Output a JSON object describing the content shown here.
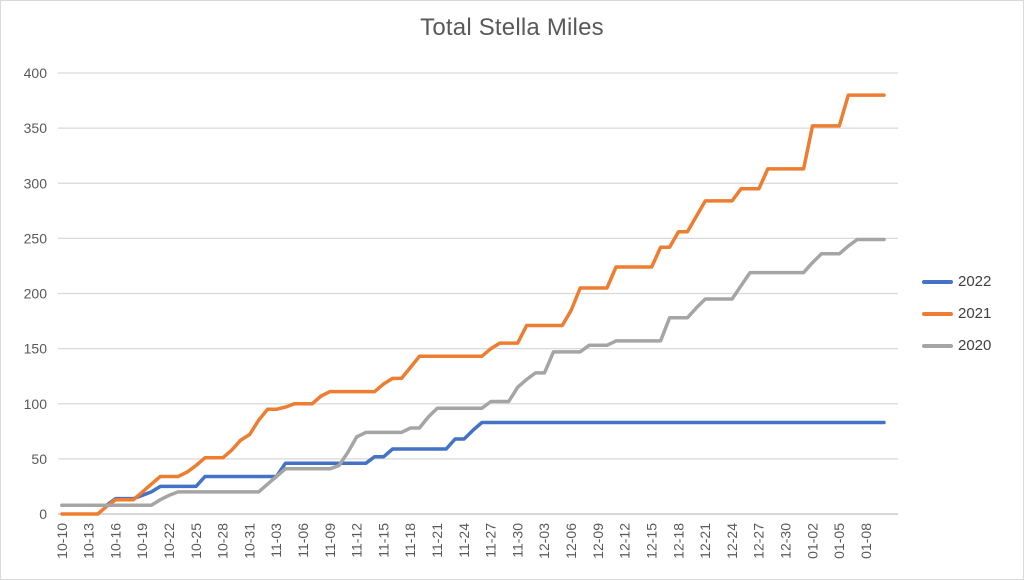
{
  "title": "Total Stella Miles",
  "colors": {
    "title_text": "#595959",
    "axis_text": "#595959",
    "legend_text": "#404040",
    "gridline": "#d9d9d9",
    "axis_line": "#bfbfbf",
    "canvas_border": "#d9d9d9",
    "series_2022": "#4472c4",
    "series_2021": "#ed7d31",
    "series_2020": "#a5a5a5"
  },
  "chart_data": {
    "type": "line",
    "title": "Total Stella Miles",
    "xlabel": "",
    "ylabel": "",
    "ylim": [
      0,
      400
    ],
    "y_tick_step": 50,
    "y_tick_labels": [
      "0",
      "50",
      "100",
      "150",
      "200",
      "250",
      "300",
      "350",
      "400"
    ],
    "grid": true,
    "legend_position": "right",
    "x_tick_every_points": 3,
    "x_tick_labels": [
      "10-10",
      "10-13",
      "10-16",
      "10-19",
      "10-22",
      "10-25",
      "10-28",
      "10-31",
      "11-03",
      "11-06",
      "11-09",
      "11-12",
      "11-15",
      "11-18",
      "11-21",
      "11-24",
      "11-27",
      "11-30",
      "12-03",
      "12-06",
      "12-09",
      "12-12",
      "12-15",
      "12-18",
      "12-21",
      "12-24",
      "12-27",
      "12-30",
      "01-02",
      "01-05",
      "01-08"
    ],
    "series": [
      {
        "name": "2022",
        "color": "#4472c4",
        "values": [
          8,
          8,
          8,
          8,
          8,
          8,
          14,
          14,
          14,
          17,
          20,
          25,
          25,
          25,
          25,
          25,
          34,
          34,
          34,
          34,
          34,
          34,
          34,
          34,
          34,
          46,
          46,
          46,
          46,
          46,
          46,
          46,
          46,
          46,
          46,
          52,
          52,
          59,
          59,
          59,
          59,
          59,
          59,
          59,
          68,
          68,
          76,
          83,
          83,
          83,
          83,
          83,
          83,
          83,
          83,
          83,
          83,
          83,
          83,
          83,
          83,
          83,
          83,
          83,
          83,
          83,
          83,
          83,
          83,
          83,
          83,
          83,
          83,
          83,
          83,
          83,
          83,
          83,
          83,
          83,
          83,
          83,
          83,
          83,
          83,
          83,
          83,
          83,
          83,
          83,
          83,
          83,
          83
        ]
      },
      {
        "name": "2021",
        "color": "#ed7d31",
        "values": [
          0,
          0,
          0,
          0,
          0,
          7,
          13,
          13,
          13,
          20,
          27,
          34,
          34,
          34,
          38,
          44,
          51,
          51,
          51,
          58,
          67,
          72,
          85,
          95,
          95,
          97,
          100,
          100,
          100,
          107,
          111,
          111,
          111,
          111,
          111,
          111,
          118,
          123,
          123,
          133,
          143,
          143,
          143,
          143,
          143,
          143,
          143,
          143,
          150,
          155,
          155,
          155,
          171,
          171,
          171,
          171,
          171,
          185,
          205,
          205,
          205,
          205,
          224,
          224,
          224,
          224,
          224,
          242,
          242,
          256,
          256,
          270,
          284,
          284,
          284,
          284,
          295,
          295,
          295,
          313,
          313,
          313,
          313,
          313,
          352,
          352,
          352,
          352,
          380,
          380,
          380,
          380,
          380
        ]
      },
      {
        "name": "2020",
        "color": "#a5a5a5",
        "values": [
          8,
          8,
          8,
          8,
          8,
          8,
          8,
          8,
          8,
          8,
          8,
          13,
          17,
          20,
          20,
          20,
          20,
          20,
          20,
          20,
          20,
          20,
          20,
          27,
          34,
          41,
          41,
          41,
          41,
          41,
          41,
          44,
          56,
          70,
          74,
          74,
          74,
          74,
          74,
          78,
          78,
          88,
          96,
          96,
          96,
          96,
          96,
          96,
          102,
          102,
          102,
          115,
          122,
          128,
          128,
          147,
          147,
          147,
          147,
          153,
          153,
          153,
          157,
          157,
          157,
          157,
          157,
          157,
          178,
          178,
          178,
          187,
          195,
          195,
          195,
          195,
          207,
          219,
          219,
          219,
          219,
          219,
          219,
          219,
          228,
          236,
          236,
          236,
          243,
          249,
          249,
          249,
          249
        ]
      }
    ]
  }
}
